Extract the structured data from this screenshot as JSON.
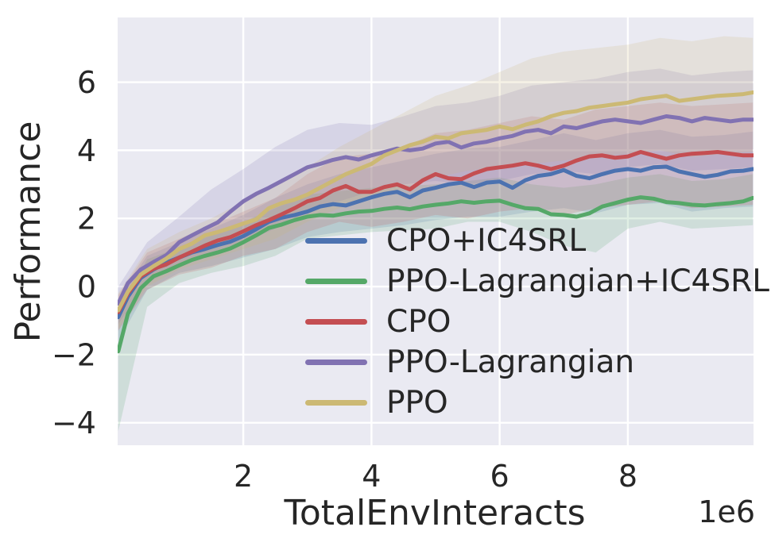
{
  "figure": {
    "background": "#ffffff",
    "text_color": "#262626"
  },
  "chart_data": {
    "type": "line",
    "title": "",
    "xlabel": "TotalEnvInteracts",
    "ylabel": "Performance",
    "x_offset_label": "1e6",
    "x_unit": "1e6",
    "grid": true,
    "plot_background": "#eaeaf2",
    "grid_color": "#ffffff",
    "legend_position": "inside lower-right, frameless",
    "xlim": [
      0.04,
      9.96
    ],
    "ylim": [
      -4.66,
      7.9
    ],
    "x_ticks": [
      {
        "v": 2,
        "label": "2"
      },
      {
        "v": 4,
        "label": "4"
      },
      {
        "v": 6,
        "label": "6"
      },
      {
        "v": 8,
        "label": "8"
      }
    ],
    "y_ticks": [
      {
        "v": -4,
        "label": "−4"
      },
      {
        "v": -2,
        "label": "−2"
      },
      {
        "v": 0,
        "label": "0"
      },
      {
        "v": 2,
        "label": "2"
      },
      {
        "v": 4,
        "label": "4"
      },
      {
        "v": 6,
        "label": "6"
      }
    ],
    "band_alpha": 0.18,
    "x": [
      0.05,
      0.2,
      0.4,
      0.6,
      0.8,
      1.0,
      1.2,
      1.4,
      1.6,
      1.8,
      2.0,
      2.2,
      2.4,
      2.6,
      2.8,
      3.0,
      3.2,
      3.4,
      3.6,
      3.8,
      4.0,
      4.2,
      4.4,
      4.6,
      4.8,
      5.0,
      5.2,
      5.4,
      5.6,
      5.8,
      6.0,
      6.2,
      6.4,
      6.6,
      6.8,
      7.0,
      7.2,
      7.4,
      7.6,
      7.8,
      8.0,
      8.2,
      8.4,
      8.6,
      8.8,
      9.0,
      9.2,
      9.4,
      9.6,
      9.8,
      9.95
    ],
    "band_x": [
      0.05,
      0.5,
      1.0,
      1.5,
      2.0,
      2.5,
      3.0,
      3.5,
      4.0,
      4.5,
      5.0,
      5.5,
      6.0,
      6.5,
      7.0,
      7.5,
      8.0,
      8.5,
      9.0,
      9.5,
      9.95
    ],
    "series": [
      {
        "label": "CPO+IC4SRL",
        "color": "#4c72b0",
        "values": [
          -0.9,
          -0.3,
          0.25,
          0.5,
          0.7,
          0.85,
          1.0,
          1.1,
          1.22,
          1.32,
          1.48,
          1.68,
          1.9,
          2.02,
          2.1,
          2.2,
          2.35,
          2.42,
          2.38,
          2.5,
          2.62,
          2.72,
          2.78,
          2.62,
          2.82,
          2.9,
          3.0,
          3.05,
          2.92,
          3.05,
          3.08,
          2.9,
          3.12,
          3.25,
          3.3,
          3.42,
          3.25,
          3.18,
          3.3,
          3.4,
          3.45,
          3.4,
          3.5,
          3.52,
          3.38,
          3.3,
          3.22,
          3.28,
          3.38,
          3.4,
          3.45
        ],
        "band_upper": [
          -0.35,
          0.9,
          1.3,
          1.7,
          2.1,
          2.6,
          3.0,
          3.3,
          3.5,
          3.7,
          3.9,
          4.05,
          4.1,
          4.3,
          4.5,
          4.3,
          4.5,
          4.6,
          4.4,
          4.45,
          4.55
        ],
        "band_lower": [
          -1.6,
          -0.1,
          0.4,
          0.6,
          0.85,
          1.1,
          1.45,
          1.6,
          1.7,
          1.8,
          1.95,
          2.05,
          2.05,
          2.2,
          2.3,
          2.15,
          2.4,
          2.45,
          2.2,
          2.3,
          2.35
        ]
      },
      {
        "label": "PPO-Lagrangian+IC4SRL",
        "color": "#55a868",
        "values": [
          -1.9,
          -0.8,
          -0.05,
          0.3,
          0.45,
          0.62,
          0.78,
          0.9,
          1.0,
          1.12,
          1.3,
          1.5,
          1.72,
          1.82,
          1.95,
          2.05,
          2.1,
          2.08,
          2.15,
          2.2,
          2.22,
          2.28,
          2.32,
          2.27,
          2.35,
          2.4,
          2.44,
          2.5,
          2.46,
          2.5,
          2.52,
          2.4,
          2.3,
          2.28,
          2.12,
          2.1,
          2.05,
          2.15,
          2.35,
          2.45,
          2.55,
          2.62,
          2.58,
          2.48,
          2.45,
          2.4,
          2.38,
          2.42,
          2.45,
          2.5,
          2.6
        ],
        "band_upper": [
          -0.85,
          0.8,
          1.15,
          1.5,
          1.9,
          2.3,
          2.7,
          2.8,
          2.9,
          2.95,
          3.0,
          3.1,
          3.2,
          3.0,
          2.9,
          3.0,
          3.2,
          3.3,
          3.1,
          3.15,
          3.3
        ],
        "band_lower": [
          -4.25,
          -0.6,
          0.1,
          0.4,
          0.6,
          0.9,
          1.4,
          1.5,
          1.6,
          1.65,
          1.7,
          1.9,
          1.9,
          1.6,
          1.2,
          1.0,
          1.7,
          1.9,
          1.7,
          1.75,
          1.8
        ]
      },
      {
        "label": "CPO",
        "color": "#c44e52",
        "values": [
          -0.75,
          -0.2,
          0.3,
          0.52,
          0.65,
          0.85,
          1.02,
          1.2,
          1.35,
          1.45,
          1.62,
          1.8,
          1.95,
          2.12,
          2.3,
          2.5,
          2.6,
          2.82,
          2.95,
          2.78,
          2.78,
          2.92,
          3.0,
          2.85,
          3.12,
          3.3,
          3.18,
          3.15,
          3.32,
          3.45,
          3.5,
          3.55,
          3.62,
          3.55,
          3.45,
          3.55,
          3.7,
          3.82,
          3.85,
          3.78,
          3.82,
          3.95,
          3.85,
          3.75,
          3.85,
          3.9,
          3.92,
          3.95,
          3.9,
          3.85,
          3.85
        ],
        "band_upper": [
          -0.25,
          1.0,
          1.4,
          1.8,
          2.2,
          2.6,
          3.3,
          3.8,
          3.9,
          4.1,
          4.5,
          4.6,
          4.8,
          5.0,
          4.9,
          5.2,
          5.3,
          5.4,
          5.3,
          5.35,
          5.4
        ],
        "band_lower": [
          -1.3,
          -0.1,
          0.35,
          0.55,
          0.9,
          1.1,
          1.6,
          1.9,
          1.75,
          1.9,
          2.1,
          2.0,
          2.2,
          2.3,
          2.1,
          2.3,
          2.4,
          2.5,
          2.3,
          2.35,
          2.4
        ]
      },
      {
        "label": "PPO-Lagrangian",
        "color": "#8172b2",
        "values": [
          -0.5,
          0.1,
          0.5,
          0.72,
          0.92,
          1.3,
          1.5,
          1.7,
          1.88,
          2.2,
          2.5,
          2.72,
          2.9,
          3.1,
          3.3,
          3.5,
          3.6,
          3.72,
          3.8,
          3.73,
          3.85,
          3.95,
          4.05,
          4.0,
          4.05,
          4.2,
          4.25,
          4.08,
          4.2,
          4.25,
          4.35,
          4.42,
          4.55,
          4.6,
          4.5,
          4.7,
          4.65,
          4.75,
          4.85,
          4.9,
          4.85,
          4.8,
          4.9,
          5.0,
          4.95,
          4.85,
          4.95,
          4.9,
          4.85,
          4.9,
          4.9
        ],
        "band_upper": [
          0.0,
          1.3,
          2.05,
          2.85,
          3.45,
          4.1,
          4.6,
          4.8,
          4.75,
          5.0,
          5.3,
          5.4,
          5.6,
          5.9,
          6.0,
          6.1,
          6.3,
          6.4,
          6.2,
          6.3,
          6.35
        ],
        "band_lower": [
          -1.1,
          0.1,
          0.6,
          0.95,
          1.3,
          1.7,
          2.2,
          2.5,
          2.8,
          3.0,
          3.1,
          3.0,
          3.1,
          3.3,
          3.4,
          3.3,
          3.5,
          3.6,
          3.4,
          3.45,
          3.5
        ]
      },
      {
        "label": "PPO",
        "color": "#ccb974",
        "values": [
          -0.7,
          -0.15,
          0.35,
          0.6,
          0.82,
          1.1,
          1.26,
          1.5,
          1.6,
          1.72,
          1.85,
          1.97,
          2.3,
          2.45,
          2.55,
          2.7,
          2.9,
          3.1,
          3.3,
          3.45,
          3.6,
          3.85,
          4.0,
          4.15,
          4.25,
          4.4,
          4.35,
          4.5,
          4.55,
          4.6,
          4.7,
          4.62,
          4.75,
          4.85,
          5.0,
          5.1,
          5.15,
          5.25,
          5.3,
          5.35,
          5.4,
          5.5,
          5.55,
          5.6,
          5.45,
          5.5,
          5.55,
          5.6,
          5.62,
          5.65,
          5.7
        ],
        "band_upper": [
          -0.2,
          1.1,
          1.6,
          2.0,
          2.5,
          3.0,
          3.5,
          4.1,
          4.6,
          5.1,
          5.6,
          5.9,
          6.3,
          6.7,
          6.9,
          7.0,
          7.1,
          7.3,
          7.2,
          7.35,
          7.3
        ],
        "band_lower": [
          -1.25,
          0.0,
          0.5,
          0.8,
          1.1,
          1.4,
          1.9,
          2.3,
          2.6,
          2.9,
          3.2,
          3.4,
          3.5,
          3.6,
          3.7,
          3.8,
          3.9,
          4.0,
          3.8,
          3.9,
          3.95
        ]
      }
    ]
  }
}
